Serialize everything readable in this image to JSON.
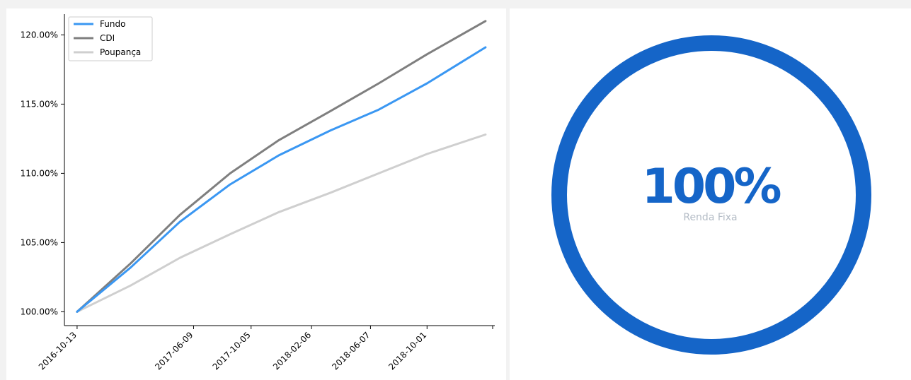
{
  "chart_data": [
    {
      "type": "line",
      "x_ticks": [
        "2016-10-13",
        "2017-06-09",
        "2017-10-05",
        "2018-02-06",
        "2018-06-07",
        "2018-10-01"
      ],
      "y_ticks": [
        "100.00%",
        "105.00%",
        "110.00%",
        "115.00%",
        "120.00%"
      ],
      "ylim": [
        99.0,
        121.5
      ],
      "xlim": [
        "2016-09-17",
        "2019-02-17"
      ],
      "legend_position": "top-left",
      "grid": false,
      "x": [
        "2016-10-13",
        "2017-01-31",
        "2017-05-12",
        "2017-08-23",
        "2017-12-01",
        "2018-03-17",
        "2018-06-24",
        "2018-10-01",
        "2019-01-29"
      ],
      "series": [
        {
          "name": "Fundo",
          "color": "#3a97f2",
          "values": [
            100.0,
            103.2,
            106.5,
            109.2,
            111.3,
            113.1,
            114.6,
            116.5,
            119.1
          ]
        },
        {
          "name": "CDI",
          "color": "#7f7f7f",
          "values": [
            100.0,
            103.5,
            107.0,
            110.0,
            112.4,
            114.5,
            116.5,
            118.6,
            121.0
          ]
        },
        {
          "name": "Poupança",
          "color": "#cfcfcf",
          "values": [
            100.0,
            101.9,
            103.9,
            105.6,
            107.2,
            108.6,
            110.0,
            111.4,
            112.8
          ]
        }
      ]
    },
    {
      "type": "pie",
      "style": "donut",
      "color": "#1565c8",
      "slices": [
        {
          "label": "Renda Fixa",
          "value": 100
        }
      ],
      "center_value": "100%",
      "center_label": "Renda Fixa"
    }
  ]
}
